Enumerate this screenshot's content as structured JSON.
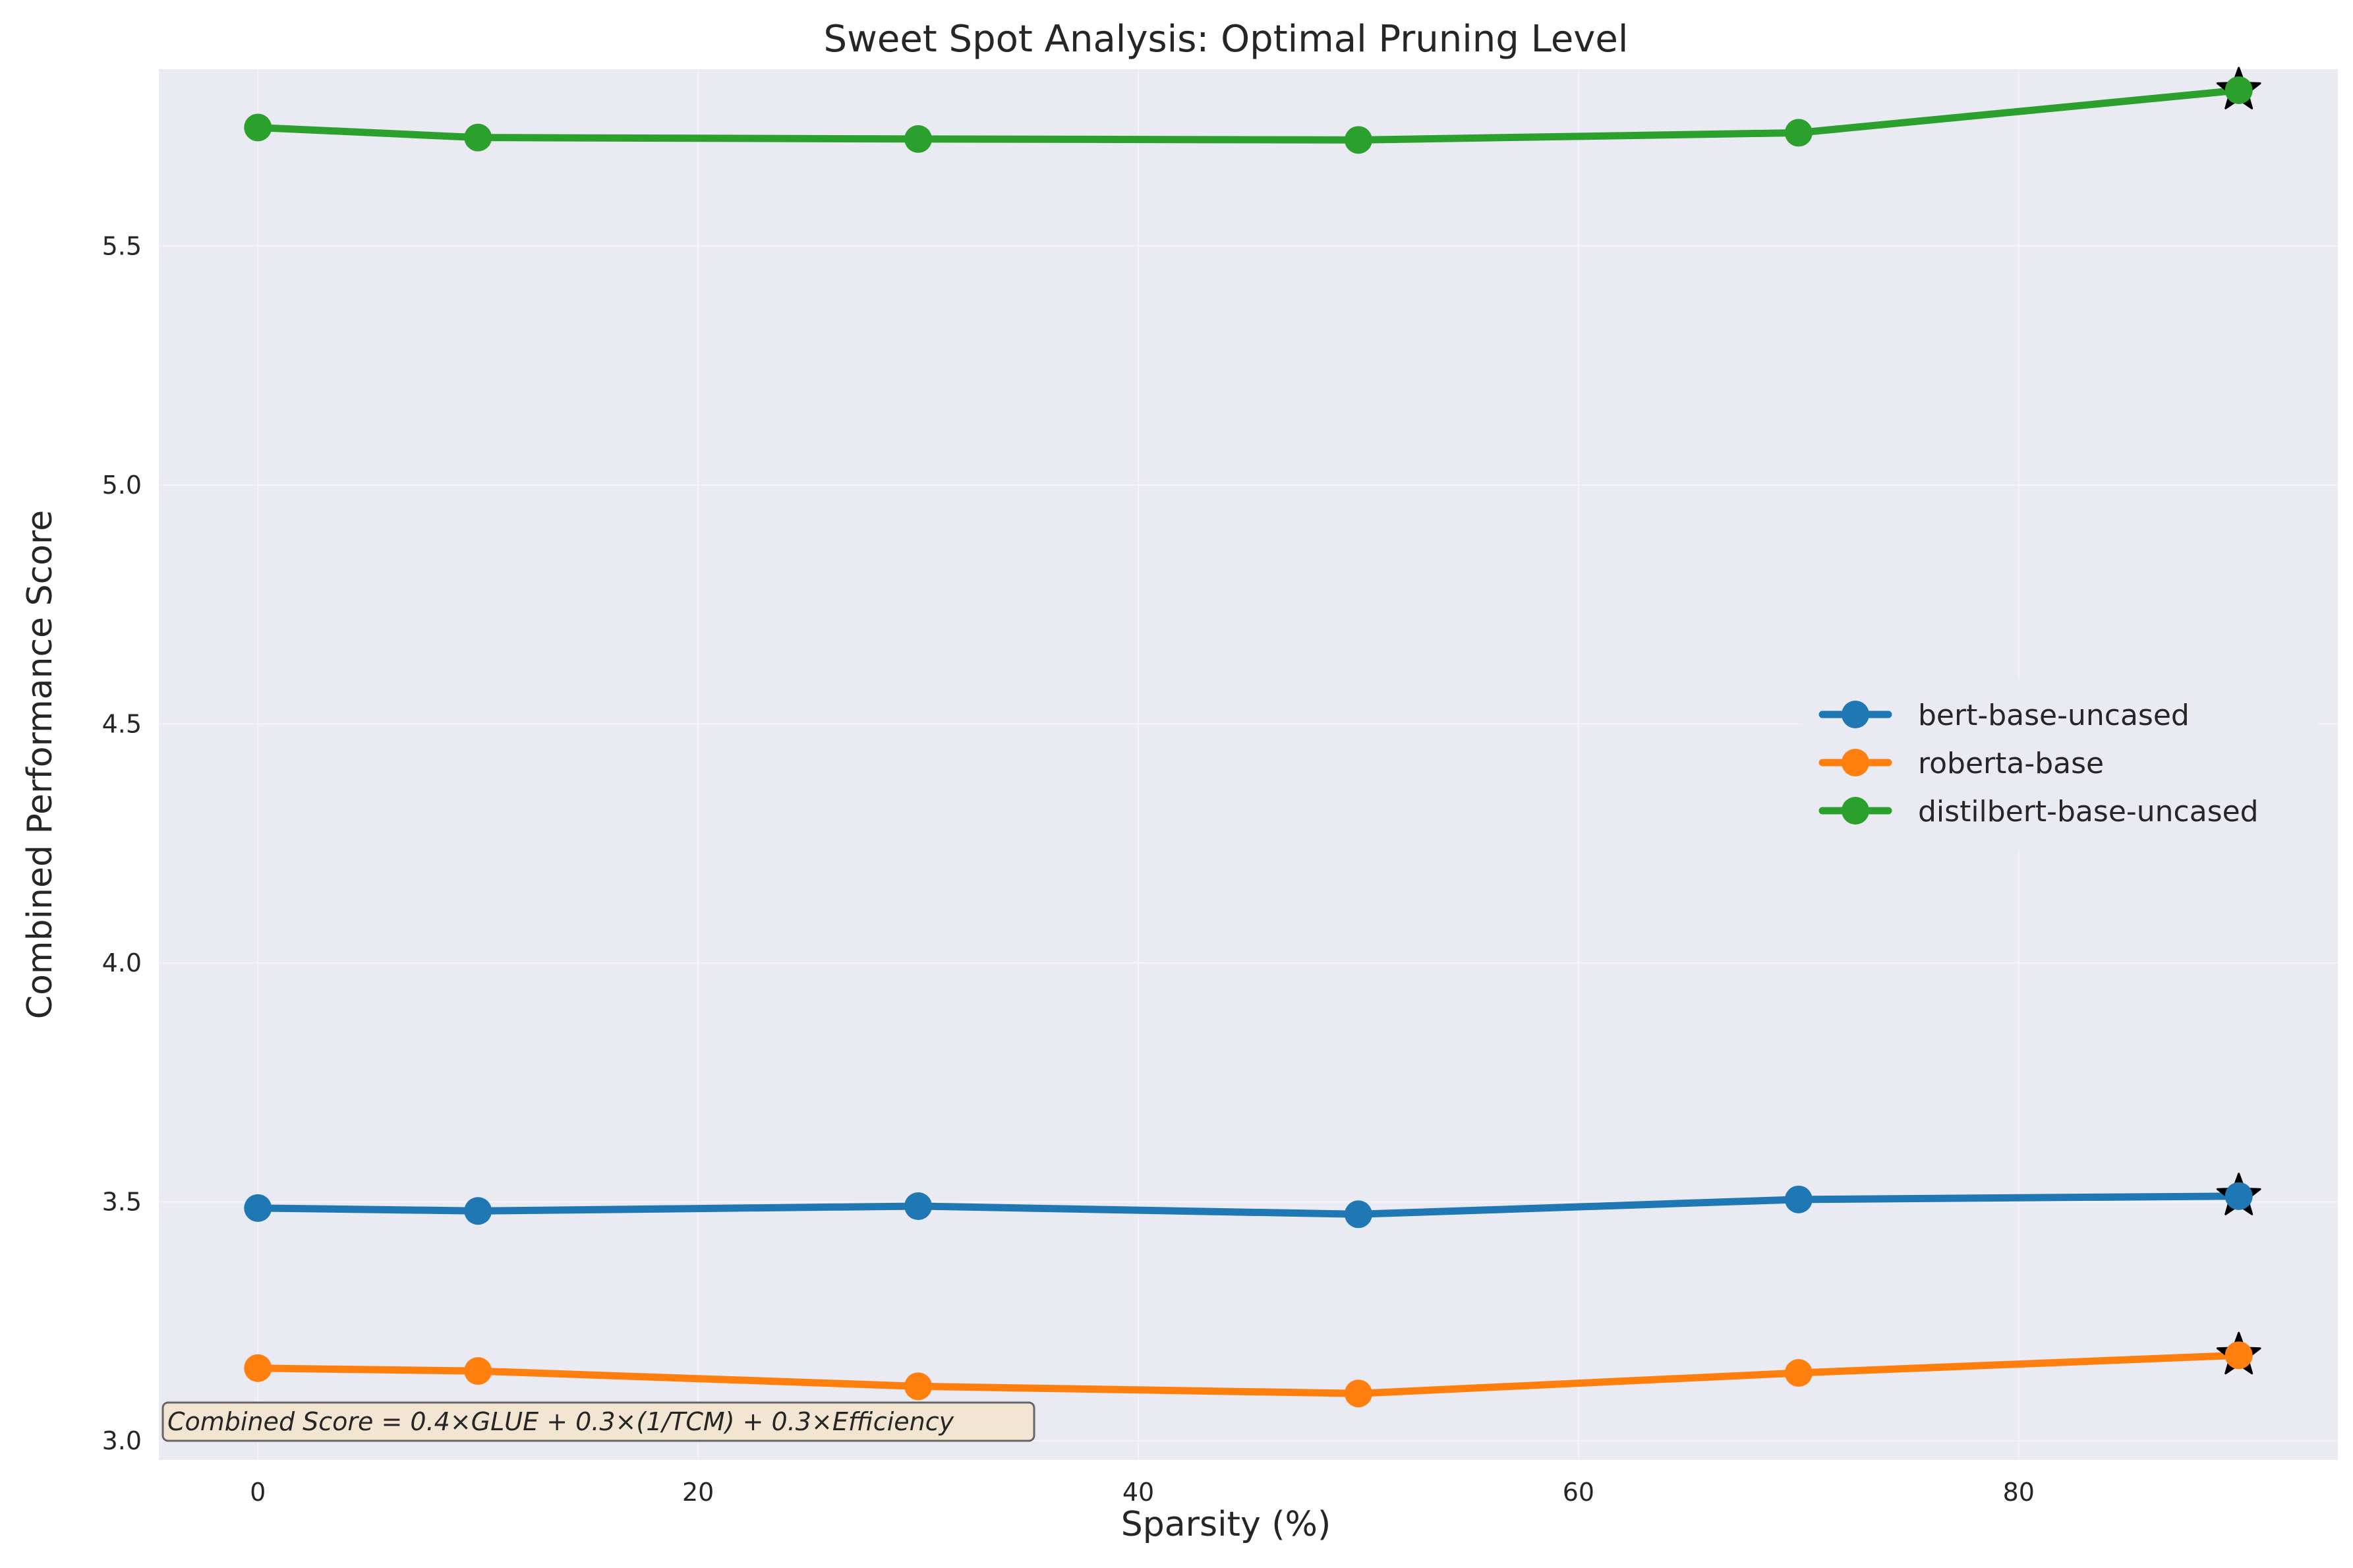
{
  "chart_data": {
    "type": "line",
    "title": "Sweet Spot Analysis: Optimal Pruning Level",
    "xlabel": "Sparsity (%)",
    "ylabel": "Combined Performance Score",
    "xlim": [
      -4.5,
      94.5
    ],
    "ylim": [
      2.96,
      5.87
    ],
    "xticks": [
      0,
      20,
      40,
      60,
      80
    ],
    "yticks": [
      3.0,
      3.5,
      4.0,
      4.5,
      5.0,
      5.5
    ],
    "ytick_labels": [
      "3.0",
      "3.5",
      "4.0",
      "4.5",
      "5.0",
      "5.5"
    ],
    "x": [
      0,
      10,
      30,
      50,
      70,
      90
    ],
    "grid": true,
    "legend_position": "center-right",
    "series": [
      {
        "name": "bert-base-uncased",
        "color": "#1f77b4",
        "values": [
          3.487,
          3.481,
          3.491,
          3.474,
          3.505,
          3.512
        ]
      },
      {
        "name": "roberta-base",
        "color": "#ff7f0e",
        "values": [
          3.152,
          3.146,
          3.114,
          3.099,
          3.142,
          3.179
        ]
      },
      {
        "name": "distilbert-base-uncased",
        "color": "#2ca02c",
        "values": [
          5.748,
          5.727,
          5.724,
          5.722,
          5.737,
          5.826
        ]
      }
    ],
    "optimal_markers": [
      {
        "series": "bert-base-uncased",
        "x": 90,
        "y": 3.512
      },
      {
        "series": "roberta-base",
        "x": 90,
        "y": 3.179
      },
      {
        "series": "distilbert-base-uncased",
        "x": 90,
        "y": 5.826
      }
    ],
    "annotation": "Combined Score = 0.4×GLUE + 0.3×(1/TCM) + 0.3×Efficiency"
  },
  "colors": {
    "plot_background": "#eaeaf2",
    "grid": "#f4f4f8",
    "marker_star": "#000000"
  }
}
